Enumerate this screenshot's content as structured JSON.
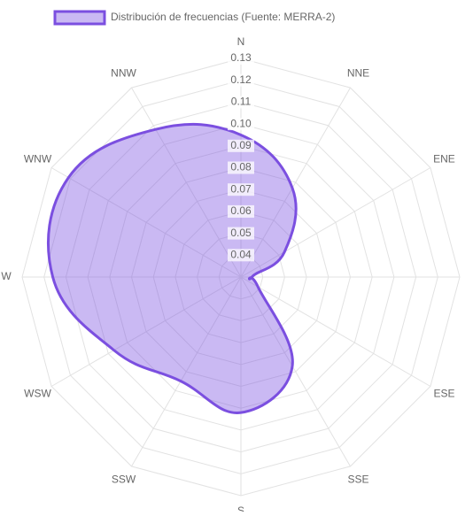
{
  "chart_data": {
    "type": "radar",
    "categories": [
      "N",
      "NNE",
      "ENE",
      null,
      "ESE",
      "SSE",
      "S",
      "SSW",
      "WSW",
      "W",
      "WNW",
      "NNW"
    ],
    "series": [
      {
        "name": "Distribución de frecuencias (Fuente: MERRA-2)",
        "color": "#7b4fe0",
        "values": [
          0.095,
          0.077,
          0.053,
          0.035,
          0.039,
          0.077,
          0.092,
          0.085,
          0.097,
          0.116,
          0.121,
          0.108
        ]
      }
    ],
    "ylim": [
      0.03,
      0.13
    ],
    "yticks": [
      {
        "value": 0.04,
        "label": "0.04"
      },
      {
        "value": 0.05,
        "label": "0.05"
      },
      {
        "value": 0.06,
        "label": "0.06"
      },
      {
        "value": 0.07,
        "label": "0.07"
      },
      {
        "value": 0.08,
        "label": "0.08"
      },
      {
        "value": 0.09,
        "label": "0.09"
      },
      {
        "value": 0.1,
        "label": "0.10"
      },
      {
        "value": 0.11,
        "label": "0.11"
      },
      {
        "value": 0.12,
        "label": "0.12"
      },
      {
        "value": 0.13,
        "label": "0.13"
      }
    ],
    "legend": "top",
    "grid": true
  }
}
